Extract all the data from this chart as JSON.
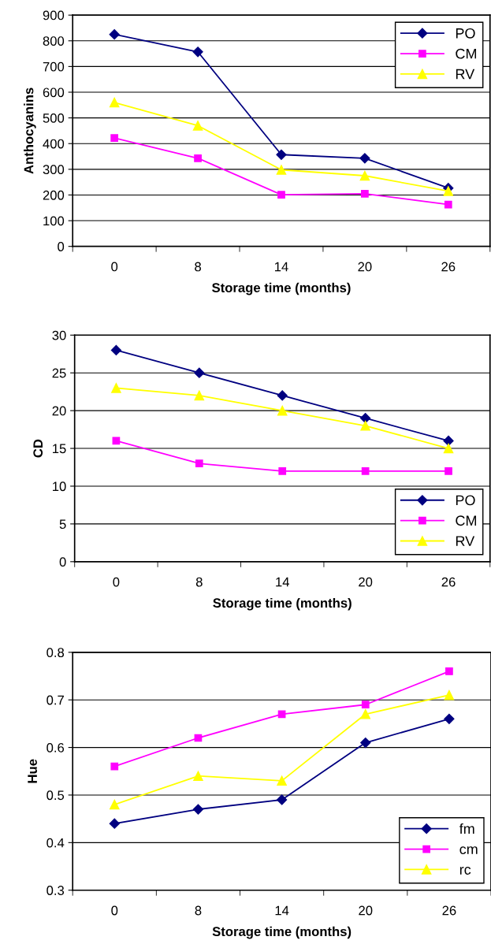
{
  "chart_data": [
    {
      "type": "line",
      "xlabel": "Storage time (months)",
      "ylabel": "Anthocyanins",
      "categories": [
        "0",
        "8",
        "14",
        "20",
        "26"
      ],
      "ylim": [
        0,
        900
      ],
      "yticks": [
        0,
        100,
        200,
        300,
        400,
        500,
        600,
        700,
        800,
        900
      ],
      "grid": "y",
      "legend": "top right",
      "series": [
        {
          "name": "PO",
          "color": "#000080",
          "marker": "diamond",
          "values": [
            825,
            757,
            357,
            343,
            227
          ]
        },
        {
          "name": "CM",
          "color": "#ff00ff",
          "marker": "square",
          "values": [
            422,
            343,
            201,
            205,
            163
          ]
        },
        {
          "name": "RV",
          "color": "#ffff00",
          "marker": "triangle",
          "values": [
            560,
            470,
            298,
            275,
            215
          ]
        }
      ]
    },
    {
      "type": "line",
      "xlabel": "Storage time (months)",
      "ylabel": "CD",
      "categories": [
        "0",
        "8",
        "14",
        "20",
        "26"
      ],
      "ylim": [
        0,
        30
      ],
      "yticks": [
        0,
        5,
        10,
        15,
        20,
        25,
        30
      ],
      "grid": "y",
      "legend": "bottom right",
      "series": [
        {
          "name": "PO",
          "color": "#000080",
          "marker": "diamond",
          "values": [
            28,
            25,
            22,
            19,
            16
          ]
        },
        {
          "name": "CM",
          "color": "#ff00ff",
          "marker": "square",
          "values": [
            16,
            13,
            12,
            12,
            12
          ]
        },
        {
          "name": "RV",
          "color": "#ffff00",
          "marker": "triangle",
          "values": [
            23,
            22,
            20,
            18,
            15
          ]
        }
      ]
    },
    {
      "type": "line",
      "xlabel": "Storage time (months)",
      "ylabel": "Hue",
      "categories": [
        "0",
        "8",
        "14",
        "20",
        "26"
      ],
      "ylim": [
        0.3,
        0.8
      ],
      "yticks": [
        0.3,
        0.4,
        0.5,
        0.6,
        0.7,
        0.8
      ],
      "grid": "y",
      "legend": "bottom right",
      "series": [
        {
          "name": "fm",
          "color": "#000080",
          "marker": "diamond",
          "values": [
            0.44,
            0.47,
            0.49,
            0.61,
            0.66
          ]
        },
        {
          "name": "cm",
          "color": "#ff00ff",
          "marker": "square",
          "values": [
            0.56,
            0.62,
            0.67,
            0.69,
            0.76
          ]
        },
        {
          "name": "rc",
          "color": "#ffff00",
          "marker": "triangle",
          "values": [
            0.48,
            0.54,
            0.53,
            0.67,
            0.71
          ]
        }
      ]
    }
  ]
}
